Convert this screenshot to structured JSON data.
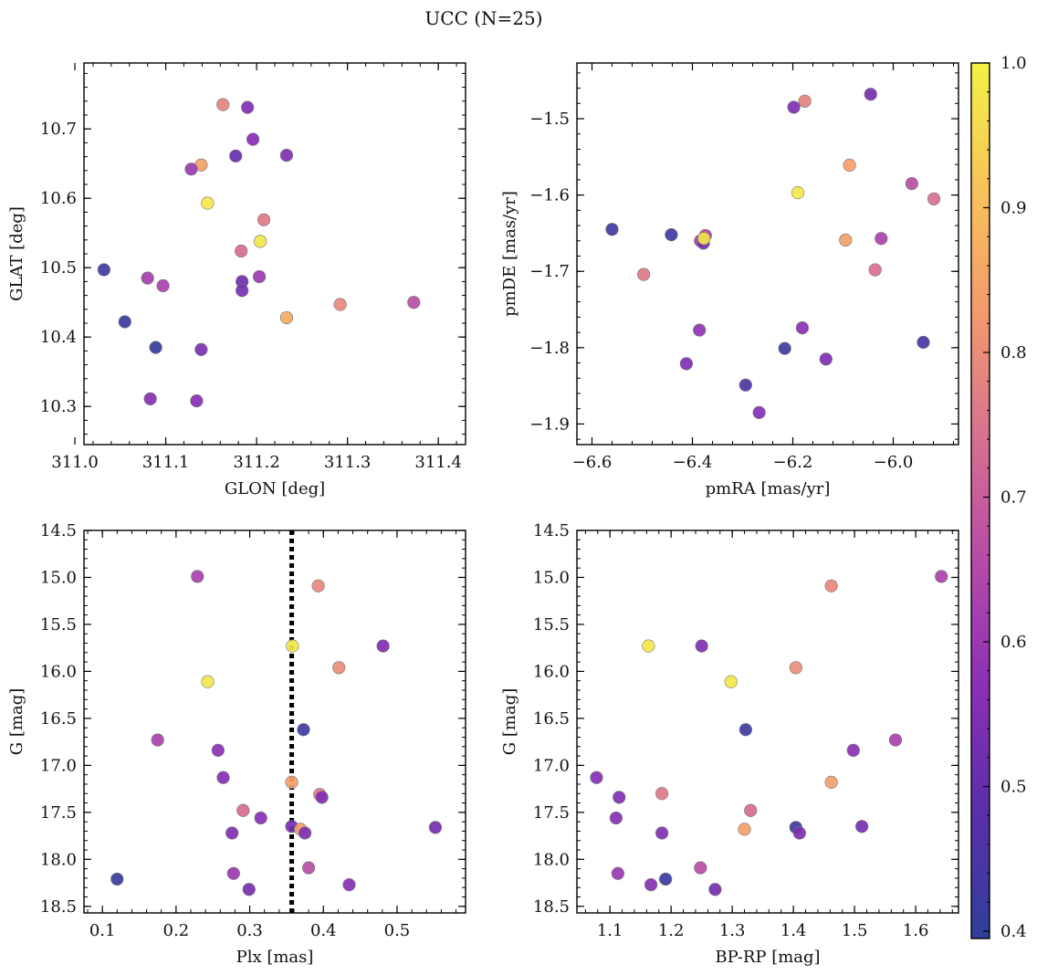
{
  "figure": {
    "title": "UCC (N=25)"
  },
  "colorbar": {
    "ticks": [
      "0.4",
      "0.5",
      "0.6",
      "0.7",
      "0.8",
      "0.9",
      "1.0"
    ],
    "tick_values": [
      0.4,
      0.5,
      0.6,
      0.7,
      0.8,
      0.9,
      1.0
    ],
    "range": [
      0.395,
      1.0
    ],
    "colormap": "plasma",
    "stops": [
      "#2f3f9a",
      "#5a2fa8",
      "#8a2fb5",
      "#b54aa8",
      "#d87090",
      "#f29a6e",
      "#f8c35a",
      "#f2f246"
    ]
  },
  "chart_data": [
    {
      "type": "scatter",
      "xlabel": "GLON [deg]",
      "ylabel": "GLAT [deg]",
      "xlim": [
        311.01,
        311.43
      ],
      "ylim": [
        10.245,
        10.795
      ],
      "xticks": [
        "311.0",
        "311.1",
        "311.2",
        "311.3",
        "311.4"
      ],
      "xtick_values": [
        311.0,
        311.1,
        311.2,
        311.3,
        311.4
      ],
      "yticks": [
        "10.3",
        "10.4",
        "10.5",
        "10.6",
        "10.7"
      ],
      "ytick_values": [
        10.3,
        10.4,
        10.5,
        10.6,
        10.7
      ],
      "points": [
        {
          "x": 311.163,
          "y": 10.735,
          "c": 0.78
        },
        {
          "x": 311.19,
          "y": 10.731,
          "c": 0.55
        },
        {
          "x": 311.196,
          "y": 10.685,
          "c": 0.56
        },
        {
          "x": 311.177,
          "y": 10.661,
          "c": 0.5
        },
        {
          "x": 311.233,
          "y": 10.662,
          "c": 0.55
        },
        {
          "x": 311.139,
          "y": 10.648,
          "c": 0.84
        },
        {
          "x": 311.128,
          "y": 10.642,
          "c": 0.6
        },
        {
          "x": 311.146,
          "y": 10.593,
          "c": 0.98
        },
        {
          "x": 311.208,
          "y": 10.569,
          "c": 0.76
        },
        {
          "x": 311.204,
          "y": 10.538,
          "c": 0.98
        },
        {
          "x": 311.183,
          "y": 10.524,
          "c": 0.73
        },
        {
          "x": 311.032,
          "y": 10.497,
          "c": 0.43
        },
        {
          "x": 311.08,
          "y": 10.485,
          "c": 0.62
        },
        {
          "x": 311.203,
          "y": 10.487,
          "c": 0.6
        },
        {
          "x": 311.097,
          "y": 10.474,
          "c": 0.63
        },
        {
          "x": 311.184,
          "y": 10.48,
          "c": 0.52
        },
        {
          "x": 311.184,
          "y": 10.467,
          "c": 0.53
        },
        {
          "x": 311.373,
          "y": 10.45,
          "c": 0.66
        },
        {
          "x": 311.292,
          "y": 10.447,
          "c": 0.79
        },
        {
          "x": 311.233,
          "y": 10.428,
          "c": 0.86
        },
        {
          "x": 311.055,
          "y": 10.422,
          "c": 0.42
        },
        {
          "x": 311.089,
          "y": 10.385,
          "c": 0.41
        },
        {
          "x": 311.139,
          "y": 10.382,
          "c": 0.54
        },
        {
          "x": 311.083,
          "y": 10.311,
          "c": 0.56
        },
        {
          "x": 311.134,
          "y": 10.308,
          "c": 0.56
        }
      ]
    },
    {
      "type": "scatter",
      "xlabel": "pmRA [mas/yr]",
      "ylabel": "pmDE [mas/yr]",
      "xlim": [
        -6.63,
        -5.87
      ],
      "ylim": [
        -1.927,
        -1.427
      ],
      "xticks": [
        "−6.6",
        "−6.4",
        "−6.2",
        "−6.0"
      ],
      "xtick_values": [
        -6.6,
        -6.4,
        -6.2,
        -6.0
      ],
      "yticks": [
        "−1.5",
        "−1.6",
        "−1.7",
        "−1.8",
        "−1.9"
      ],
      "ytick_values": [
        -1.5,
        -1.6,
        -1.7,
        -1.8,
        -1.9
      ],
      "points": [
        {
          "x": -6.045,
          "y": -1.468,
          "c": 0.53
        },
        {
          "x": -6.176,
          "y": -1.477,
          "c": 0.78
        },
        {
          "x": -6.198,
          "y": -1.485,
          "c": 0.55
        },
        {
          "x": -6.087,
          "y": -1.561,
          "c": 0.84
        },
        {
          "x": -5.963,
          "y": -1.585,
          "c": 0.66
        },
        {
          "x": -5.919,
          "y": -1.605,
          "c": 0.74
        },
        {
          "x": -6.19,
          "y": -1.597,
          "c": 0.98
        },
        {
          "x": -6.56,
          "y": -1.645,
          "c": 0.43
        },
        {
          "x": -6.442,
          "y": -1.652,
          "c": 0.43
        },
        {
          "x": -6.374,
          "y": -1.653,
          "c": 0.64
        },
        {
          "x": -6.384,
          "y": -1.66,
          "c": 0.62
        },
        {
          "x": -6.378,
          "y": -1.663,
          "c": 0.53
        },
        {
          "x": -6.377,
          "y": -1.657,
          "c": 0.98
        },
        {
          "x": -6.024,
          "y": -1.657,
          "c": 0.63
        },
        {
          "x": -6.095,
          "y": -1.659,
          "c": 0.84
        },
        {
          "x": -6.036,
          "y": -1.698,
          "c": 0.74
        },
        {
          "x": -6.497,
          "y": -1.704,
          "c": 0.76
        },
        {
          "x": -6.181,
          "y": -1.774,
          "c": 0.57
        },
        {
          "x": -6.386,
          "y": -1.777,
          "c": 0.58
        },
        {
          "x": -5.94,
          "y": -1.793,
          "c": 0.45
        },
        {
          "x": -6.216,
          "y": -1.801,
          "c": 0.43
        },
        {
          "x": -6.134,
          "y": -1.815,
          "c": 0.55
        },
        {
          "x": -6.412,
          "y": -1.821,
          "c": 0.55
        },
        {
          "x": -6.294,
          "y": -1.849,
          "c": 0.46
        },
        {
          "x": -6.267,
          "y": -1.885,
          "c": 0.56
        }
      ]
    },
    {
      "type": "scatter",
      "xlabel": "Plx [mas]",
      "ylabel": "G [mag]",
      "xlim": [
        0.075,
        0.593
      ],
      "ylim": [
        18.57,
        14.5
      ],
      "inverted_y": true,
      "vline": {
        "x": 0.357,
        "style": "dotted",
        "color": "#000000"
      },
      "xticks": [
        "0.1",
        "0.2",
        "0.3",
        "0.4",
        "0.5"
      ],
      "xtick_values": [
        0.1,
        0.2,
        0.3,
        0.4,
        0.5
      ],
      "yticks": [
        "14.5",
        "15.0",
        "15.5",
        "16.0",
        "16.5",
        "17.0",
        "17.5",
        "18.0",
        "18.5"
      ],
      "ytick_values": [
        14.5,
        15.0,
        15.5,
        16.0,
        16.5,
        17.0,
        17.5,
        18.0,
        18.5
      ],
      "points": [
        {
          "x": 0.229,
          "y": 14.99,
          "c": 0.63
        },
        {
          "x": 0.393,
          "y": 15.09,
          "c": 0.79
        },
        {
          "x": 0.358,
          "y": 15.73,
          "c": 0.98
        },
        {
          "x": 0.481,
          "y": 15.73,
          "c": 0.55
        },
        {
          "x": 0.421,
          "y": 15.96,
          "c": 0.8
        },
        {
          "x": 0.243,
          "y": 16.11,
          "c": 0.98
        },
        {
          "x": 0.373,
          "y": 16.62,
          "c": 0.43
        },
        {
          "x": 0.175,
          "y": 16.73,
          "c": 0.63
        },
        {
          "x": 0.257,
          "y": 16.84,
          "c": 0.57
        },
        {
          "x": 0.264,
          "y": 17.13,
          "c": 0.56
        },
        {
          "x": 0.357,
          "y": 17.18,
          "c": 0.84
        },
        {
          "x": 0.395,
          "y": 17.31,
          "c": 0.76
        },
        {
          "x": 0.398,
          "y": 17.34,
          "c": 0.55
        },
        {
          "x": 0.291,
          "y": 17.48,
          "c": 0.73
        },
        {
          "x": 0.315,
          "y": 17.56,
          "c": 0.56
        },
        {
          "x": 0.357,
          "y": 17.65,
          "c": 0.53
        },
        {
          "x": 0.369,
          "y": 17.68,
          "c": 0.84
        },
        {
          "x": 0.552,
          "y": 17.66,
          "c": 0.53
        },
        {
          "x": 0.276,
          "y": 17.72,
          "c": 0.55
        },
        {
          "x": 0.375,
          "y": 17.72,
          "c": 0.55
        },
        {
          "x": 0.38,
          "y": 18.09,
          "c": 0.66
        },
        {
          "x": 0.278,
          "y": 18.15,
          "c": 0.6
        },
        {
          "x": 0.12,
          "y": 18.21,
          "c": 0.42
        },
        {
          "x": 0.435,
          "y": 18.27,
          "c": 0.56
        },
        {
          "x": 0.299,
          "y": 18.32,
          "c": 0.53
        }
      ]
    },
    {
      "type": "scatter",
      "xlabel": "BP-RP [mag]",
      "ylabel": "G [mag]",
      "xlim": [
        1.046,
        1.67
      ],
      "ylim": [
        18.57,
        14.5
      ],
      "inverted_y": true,
      "xticks": [
        "1.1",
        "1.2",
        "1.3",
        "1.4",
        "1.5",
        "1.6"
      ],
      "xtick_values": [
        1.1,
        1.2,
        1.3,
        1.4,
        1.5,
        1.6
      ],
      "yticks": [
        "14.5",
        "15.0",
        "15.5",
        "16.0",
        "16.5",
        "17.0",
        "17.5",
        "18.0",
        "18.5"
      ],
      "ytick_values": [
        14.5,
        15.0,
        15.5,
        16.0,
        16.5,
        17.0,
        17.5,
        18.0,
        18.5
      ],
      "points": [
        {
          "x": 1.642,
          "y": 14.99,
          "c": 0.63
        },
        {
          "x": 1.462,
          "y": 15.09,
          "c": 0.79
        },
        {
          "x": 1.163,
          "y": 15.73,
          "c": 0.98
        },
        {
          "x": 1.25,
          "y": 15.73,
          "c": 0.55
        },
        {
          "x": 1.404,
          "y": 15.96,
          "c": 0.8
        },
        {
          "x": 1.298,
          "y": 16.11,
          "c": 0.98
        },
        {
          "x": 1.322,
          "y": 16.62,
          "c": 0.43
        },
        {
          "x": 1.567,
          "y": 16.73,
          "c": 0.63
        },
        {
          "x": 1.498,
          "y": 16.84,
          "c": 0.57
        },
        {
          "x": 1.078,
          "y": 17.13,
          "c": 0.56
        },
        {
          "x": 1.462,
          "y": 17.18,
          "c": 0.84
        },
        {
          "x": 1.185,
          "y": 17.3,
          "c": 0.76
        },
        {
          "x": 1.115,
          "y": 17.34,
          "c": 0.55
        },
        {
          "x": 1.33,
          "y": 17.48,
          "c": 0.73
        },
        {
          "x": 1.11,
          "y": 17.56,
          "c": 0.56
        },
        {
          "x": 1.512,
          "y": 17.65,
          "c": 0.53
        },
        {
          "x": 1.404,
          "y": 17.66,
          "c": 0.43
        },
        {
          "x": 1.32,
          "y": 17.68,
          "c": 0.84
        },
        {
          "x": 1.185,
          "y": 17.72,
          "c": 0.55
        },
        {
          "x": 1.41,
          "y": 17.72,
          "c": 0.55
        },
        {
          "x": 1.248,
          "y": 18.09,
          "c": 0.66
        },
        {
          "x": 1.113,
          "y": 18.15,
          "c": 0.6
        },
        {
          "x": 1.191,
          "y": 18.21,
          "c": 0.42
        },
        {
          "x": 1.167,
          "y": 18.27,
          "c": 0.56
        },
        {
          "x": 1.272,
          "y": 18.32,
          "c": 0.53
        }
      ]
    }
  ]
}
